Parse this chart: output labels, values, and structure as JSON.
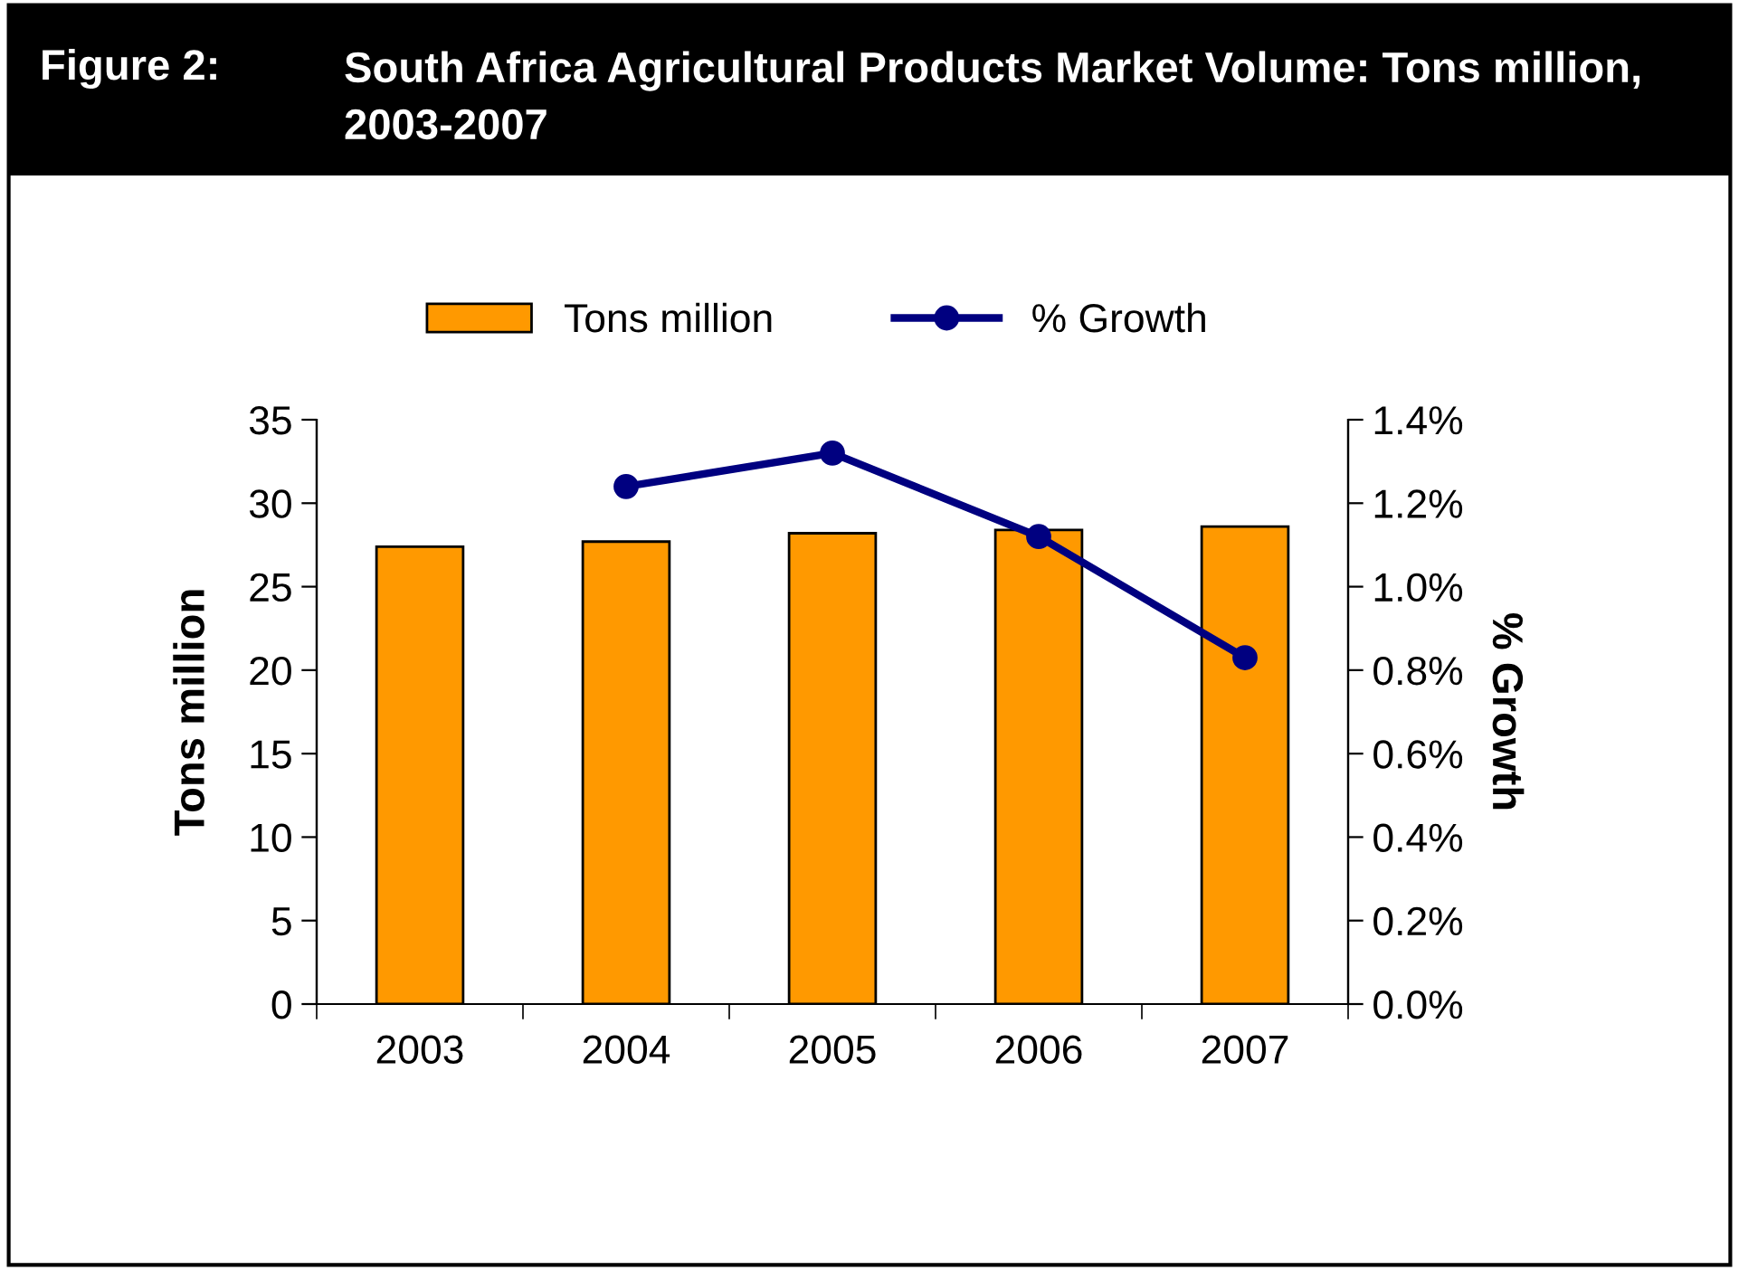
{
  "chart_data": {
    "type": "bar",
    "title": "Figure 2:",
    "subtitle": "South Africa Agricultural Products Market Volume: Tons million, 2003-2007",
    "categories": [
      "2003",
      "2004",
      "2005",
      "2006",
      "2007"
    ],
    "series": [
      {
        "name": "Tons million",
        "color": "#ff9900",
        "values": [
          27.4,
          27.7,
          28.2,
          28.4,
          28.6
        ]
      },
      {
        "name": "% Growth",
        "type": "line",
        "axis": "y2",
        "color": "#000080",
        "values": [
          null,
          1.24,
          1.32,
          1.12,
          0.83
        ]
      }
    ],
    "ylabel": "Tons million",
    "y2label": "% Growth",
    "ylim": [
      0,
      35
    ],
    "yticks": [
      0,
      5,
      10,
      15,
      20,
      25,
      30,
      35
    ],
    "y2lim": [
      0,
      1.4
    ],
    "y2ticks": [
      {
        "value": 0,
        "label": "0.0%"
      },
      {
        "value": 0.2,
        "label": "0.2%"
      },
      {
        "value": 0.4,
        "label": "0.4%"
      },
      {
        "value": 0.6,
        "label": "0.6%"
      },
      {
        "value": 0.8,
        "label": "0.8%"
      },
      {
        "value": 1.0,
        "label": "1.0%"
      },
      {
        "value": 1.2,
        "label": "1.2%"
      },
      {
        "value": 1.4,
        "label": "1.4%"
      }
    ],
    "marker": "circle",
    "line_style": "solid",
    "grid": false,
    "legend": "top"
  }
}
